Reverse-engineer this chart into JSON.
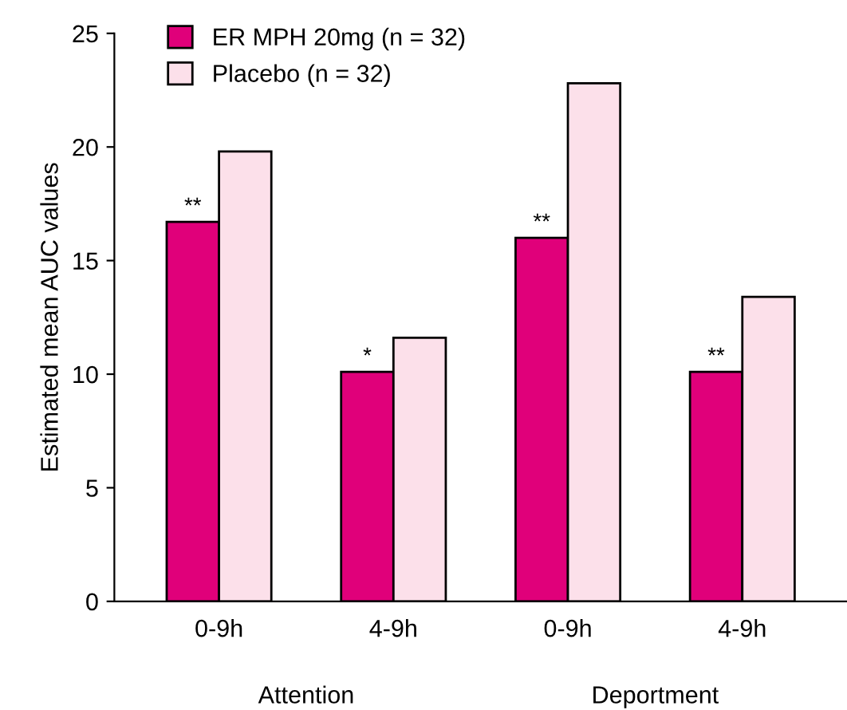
{
  "chart_data": {
    "type": "bar",
    "ylabel": "Estimated mean AUC values",
    "categories": [
      "0-9h",
      "4-9h",
      "0-9h",
      "4-9h"
    ],
    "series": [
      {
        "name": "ER MPH 20mg (n = 32)",
        "color": "#e0007a",
        "values": [
          16.7,
          10.1,
          16.0,
          10.1
        ],
        "value_labels": [
          "**",
          "*",
          "**",
          "**"
        ]
      },
      {
        "name": "Placebo (n = 32)",
        "color": "#fce0ea",
        "values": [
          19.8,
          11.6,
          22.8,
          13.4
        ]
      }
    ],
    "annotations": [
      "Attention",
      "Deportment"
    ],
    "ylim": [
      0,
      25
    ],
    "yticks": [
      0,
      5,
      10,
      15,
      20,
      25
    ],
    "grid": false,
    "legend": "top left"
  }
}
